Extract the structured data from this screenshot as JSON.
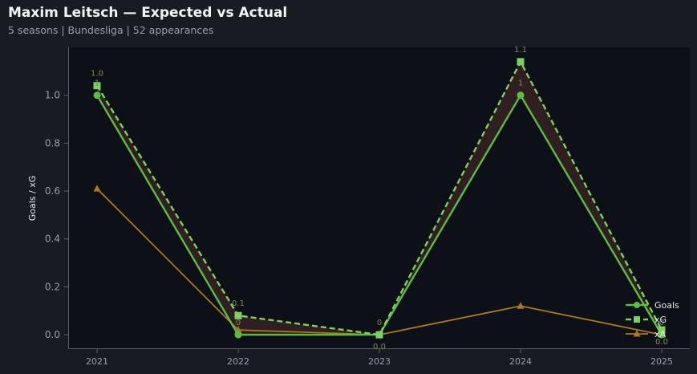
{
  "header": {
    "title": "Maxim Leitsch — Expected vs Actual",
    "subtitle": "5 seasons | Bundesliga | 52 appearances"
  },
  "chart_data": {
    "type": "line",
    "categories": [
      "2021",
      "2022",
      "2023",
      "2024",
      "2025"
    ],
    "series": [
      {
        "name": "Goals",
        "values": [
          1,
          0,
          0,
          1,
          0
        ],
        "labels": [
          "1",
          "0",
          "0",
          "1",
          "0"
        ],
        "color": "#5dbb46",
        "style": "solid",
        "marker": "circle"
      },
      {
        "name": "xG",
        "values": [
          1.04,
          0.08,
          0.0,
          1.14,
          0.02
        ],
        "labels": [
          "1.0",
          "0.1",
          "0.0",
          "1.1",
          "0.0"
        ],
        "color": "#7ed062",
        "style": "dashed",
        "marker": "square"
      },
      {
        "name": "xA",
        "values": [
          0.61,
          0.02,
          0.0,
          0.12,
          0.0
        ],
        "labels": [],
        "color": "#a87a22",
        "style": "solid",
        "marker": "triangle"
      }
    ],
    "fill_between": {
      "series": [
        "Goals",
        "xG"
      ],
      "color": "#2f1f20"
    },
    "ylabel": "Goals / xG",
    "xlabel": "",
    "ylim": [
      -0.06,
      1.2
    ],
    "yticks": [
      0.0,
      0.2,
      0.4,
      0.6,
      0.8,
      1.0
    ],
    "ytick_labels": [
      "0.0",
      "0.2",
      "0.4",
      "0.6",
      "0.8",
      "1.0"
    ],
    "grid": false,
    "legend": "bottom-right",
    "colors": {
      "background": "#171b22",
      "plot_background": "#0d1016",
      "axis": "#5a606a"
    }
  }
}
